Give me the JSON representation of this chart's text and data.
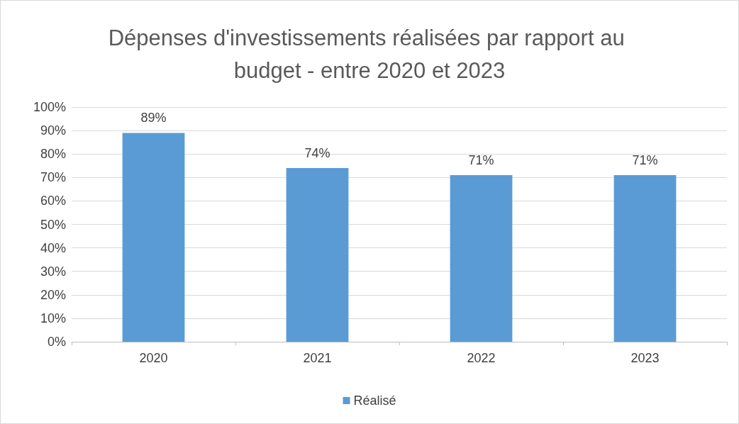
{
  "chart_data": {
    "type": "bar",
    "title": "Dépenses d'investissements réalisées par rapport au budget - entre 2020 et 2023",
    "categories": [
      "2020",
      "2021",
      "2022",
      "2023"
    ],
    "series": [
      {
        "name": "Réalisé",
        "color": "#5b9bd5",
        "values": [
          89,
          74,
          71,
          71
        ],
        "value_labels": [
          "89%",
          "74%",
          "71%",
          "71%"
        ]
      }
    ],
    "ylim": [
      0,
      100
    ],
    "yticks": [
      {
        "value": 0,
        "label": "0%"
      },
      {
        "value": 10,
        "label": "10%"
      },
      {
        "value": 20,
        "label": "20%"
      },
      {
        "value": 30,
        "label": "30%"
      },
      {
        "value": 40,
        "label": "40%"
      },
      {
        "value": 50,
        "label": "50%"
      },
      {
        "value": 60,
        "label": "60%"
      },
      {
        "value": 70,
        "label": "70%"
      },
      {
        "value": 80,
        "label": "80%"
      },
      {
        "value": 90,
        "label": "90%"
      },
      {
        "value": 100,
        "label": "100%"
      }
    ],
    "grid": "y",
    "legend": "bottom"
  }
}
